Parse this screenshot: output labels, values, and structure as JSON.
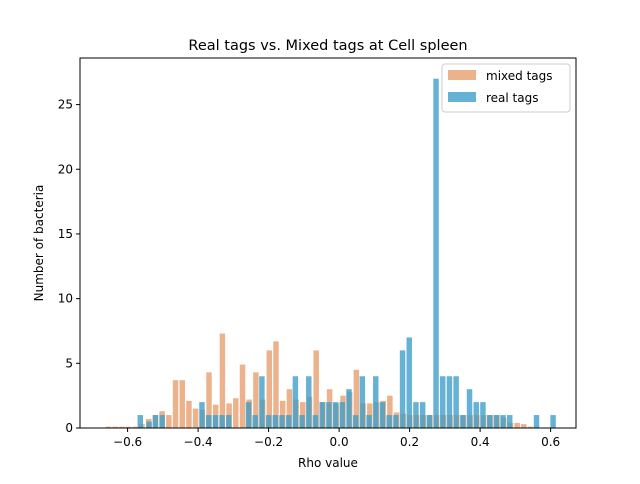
{
  "chart_data": {
    "type": "bar",
    "title": "Real tags vs. Mixed tags at Cell spleen",
    "xlabel": "Rho value",
    "ylabel": "Number of bacteria",
    "xlim": [
      -0.735,
      0.672
    ],
    "ylim": [
      0,
      28.6
    ],
    "xticks": [
      -0.6,
      -0.4,
      -0.2,
      0.0,
      0.2,
      0.4,
      0.6
    ],
    "xtick_labels": [
      "−0.6",
      "−0.4",
      "−0.2",
      "0.0",
      "0.2",
      "0.4",
      "0.6"
    ],
    "yticks": [
      0,
      5,
      10,
      15,
      20,
      25
    ],
    "ytick_labels": [
      "0",
      "5",
      "10",
      "15",
      "20",
      "25"
    ],
    "grid": false,
    "legend_position": "top-right",
    "series": [
      {
        "name": "mixed tags",
        "color": "#E69F6E",
        "opacity": 0.8,
        "bar_width": 0.0155,
        "x": [
          -0.654,
          -0.635,
          -0.616,
          -0.597,
          -0.578,
          -0.559,
          -0.54,
          -0.521,
          -0.502,
          -0.483,
          -0.464,
          -0.445,
          -0.426,
          -0.407,
          -0.388,
          -0.369,
          -0.35,
          -0.331,
          -0.312,
          -0.293,
          -0.274,
          -0.255,
          -0.236,
          -0.217,
          -0.198,
          -0.179,
          -0.16,
          -0.141,
          -0.122,
          -0.103,
          -0.084,
          -0.065,
          -0.046,
          -0.027,
          -0.008,
          0.011,
          0.03,
          0.049,
          0.068,
          0.087,
          0.106,
          0.125,
          0.144,
          0.163,
          0.182,
          0.201,
          0.22,
          0.239,
          0.258,
          0.277,
          0.296,
          0.315,
          0.334,
          0.353,
          0.372,
          0.391,
          0.41,
          0.429,
          0.448,
          0.467,
          0.486,
          0.505,
          0.524,
          0.543
        ],
        "values": [
          0.1,
          0.1,
          0.1,
          0.1,
          0.1,
          0.3,
          0.7,
          1.0,
          1.3,
          1.0,
          3.7,
          3.7,
          2.1,
          1.5,
          1.4,
          4.3,
          1.8,
          7.3,
          1.9,
          2.3,
          4.9,
          2.2,
          4.3,
          2.2,
          6.0,
          6.7,
          2.1,
          3.0,
          2.2,
          2.0,
          2.4,
          6.0,
          2.0,
          3.0,
          1.9,
          2.5,
          2.8,
          4.5,
          1.9,
          1.9,
          2.0,
          2.1,
          2.5,
          1.2,
          1.1,
          1.0,
          1.0,
          1.0,
          1.0,
          1.0,
          1.0,
          1.0,
          1.0,
          1.0,
          1.0,
          1.0,
          1.0,
          1.0,
          1.0,
          0.8,
          0.4,
          0.4,
          0.3,
          0.1
        ]
      },
      {
        "name": "real tags",
        "color": "#3F9FC9",
        "opacity": 0.8,
        "bar_width": 0.0155,
        "x": [
          -0.564,
          -0.539,
          -0.521,
          -0.502,
          -0.389,
          -0.37,
          -0.351,
          -0.332,
          -0.313,
          -0.257,
          -0.238,
          -0.219,
          -0.2,
          -0.181,
          -0.162,
          -0.143,
          -0.124,
          -0.105,
          -0.086,
          -0.067,
          -0.048,
          -0.029,
          -0.01,
          0.009,
          0.028,
          0.047,
          0.066,
          0.085,
          0.104,
          0.123,
          0.142,
          0.161,
          0.18,
          0.199,
          0.218,
          0.237,
          0.256,
          0.275,
          0.294,
          0.313,
          0.332,
          0.351,
          0.37,
          0.389,
          0.408,
          0.427,
          0.446,
          0.465,
          0.484,
          0.56,
          0.607
        ],
        "values": [
          1,
          0.5,
          1,
          1,
          2,
          1,
          1,
          1,
          1,
          2,
          1,
          4,
          1,
          1,
          1,
          1,
          4,
          1,
          4,
          1,
          2,
          2,
          2,
          2,
          3,
          1,
          4,
          1,
          4,
          2,
          1,
          1,
          6,
          7,
          2,
          2,
          1,
          27,
          4,
          4,
          4,
          1,
          3,
          2,
          2,
          1,
          1,
          1,
          1,
          1,
          1
        ]
      }
    ]
  }
}
